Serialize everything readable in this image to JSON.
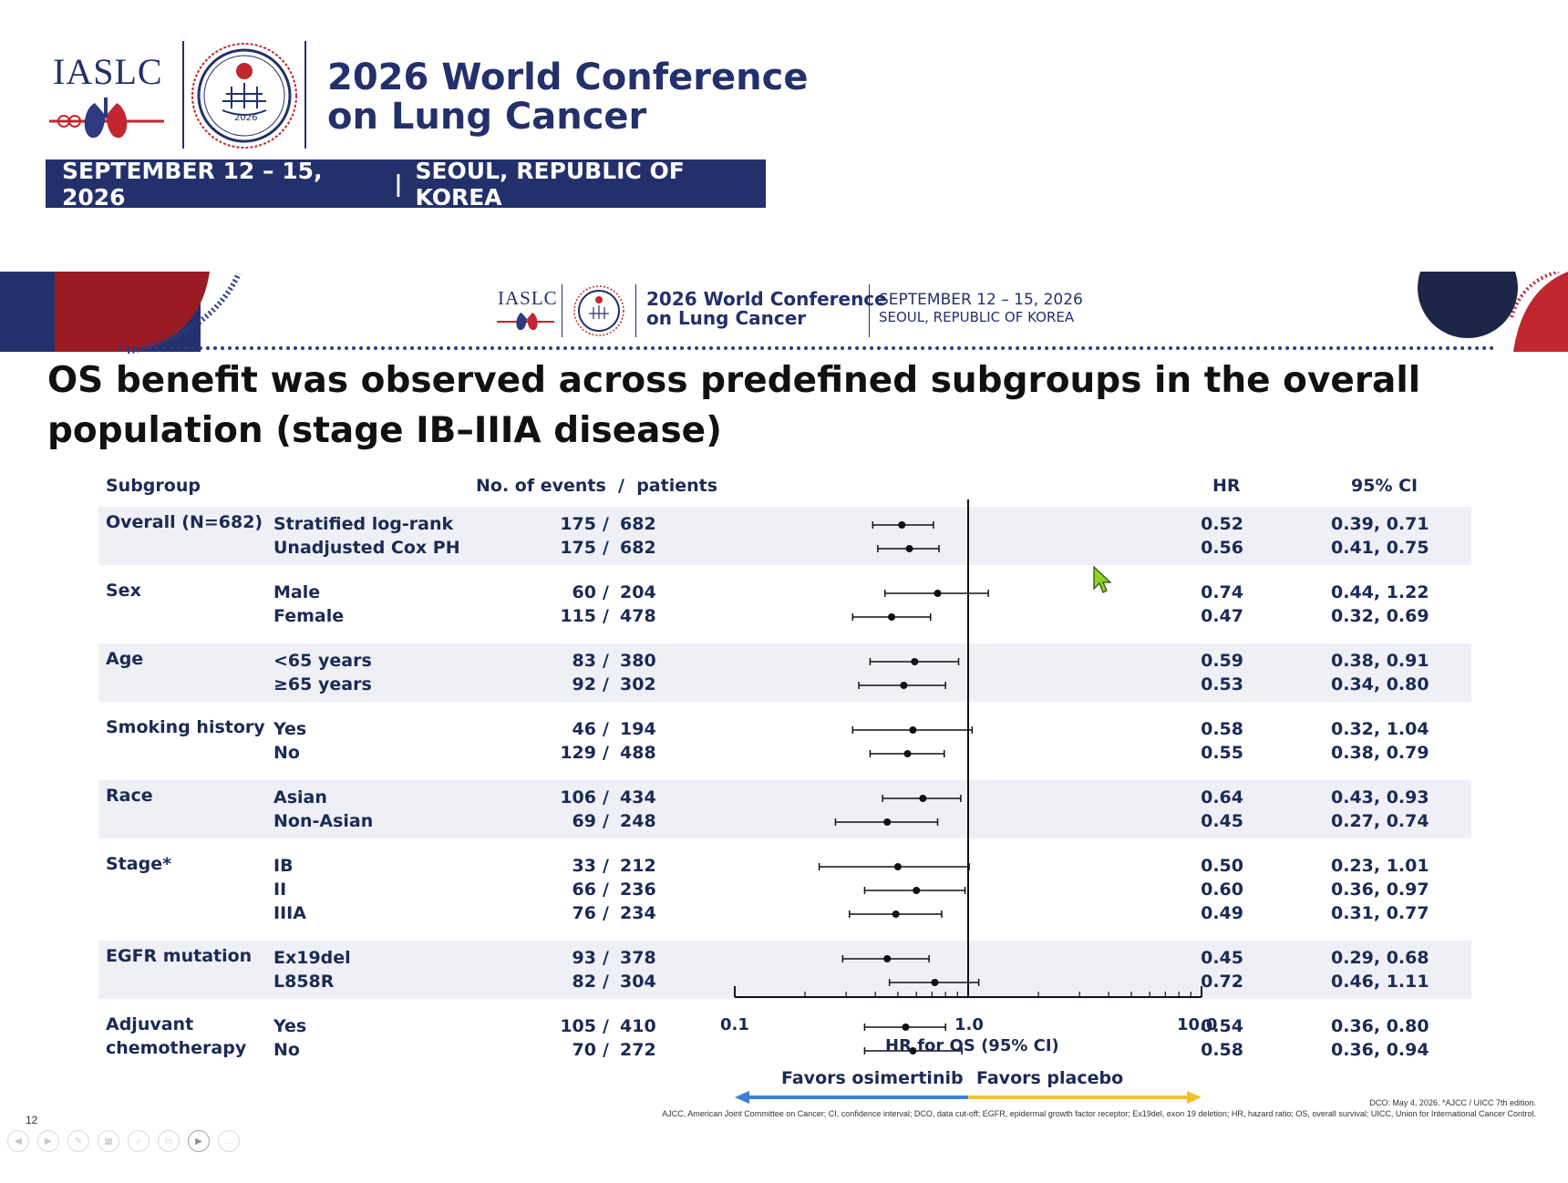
{
  "conference": {
    "org": "IASLC",
    "emblem_year": "2026",
    "title_line1": "2026 World Conference",
    "title_line2": "on Lung Cancer",
    "dates": "SEPTEMBER 12 – 15, 2026",
    "separator": "|",
    "location": "SEOUL, REPUBLIC OF KOREA"
  },
  "slide_header": {
    "org": "IASLC",
    "title_line1": "2026 World Conference",
    "title_line2": "on Lung Cancer",
    "dates": "SEPTEMBER 12 – 15, 2026",
    "location": "SEOUL, REPUBLIC OF KOREA"
  },
  "slide": {
    "title_line1": "OS benefit was observed across predefined subgroups in the overall",
    "title_line2": "population (stage IB–IIIA disease)",
    "page_number": "12"
  },
  "table_headers": {
    "subgroup": "Subgroup",
    "events_patients": "No. of events  /  patients",
    "hr": "HR",
    "ci": "95% CI"
  },
  "chart_data": {
    "type": "forest",
    "x_scale": "log",
    "xlim": [
      0.1,
      10.0
    ],
    "xticks": [
      "0.1",
      "1.0",
      "10.0"
    ],
    "xlabel": "HR for OS (95% CI)",
    "reference_line": 1.0,
    "favors_left": "Favors osimertinib",
    "favors_right": "Favors placebo",
    "colors": {
      "left_arrow": "#3b7fd6",
      "right_arrow": "#f2c12e",
      "marker": "#111111",
      "band": "#eef0f5",
      "text": "#1b2a55"
    },
    "groups": [
      {
        "label": "Overall (N=682)",
        "shaded": true,
        "rows": [
          {
            "name": "Stratified log-rank",
            "events": "175",
            "patients": "682",
            "hr": 0.52,
            "ci_low": 0.39,
            "ci_high": 0.71,
            "hr_text": "0.52",
            "ci_text": "0.39, 0.71"
          },
          {
            "name": "Unadjusted Cox PH",
            "events": "175",
            "patients": "682",
            "hr": 0.56,
            "ci_low": 0.41,
            "ci_high": 0.75,
            "hr_text": "0.56",
            "ci_text": "0.41, 0.75"
          }
        ]
      },
      {
        "label": "Sex",
        "shaded": false,
        "rows": [
          {
            "name": "Male",
            "events": "60",
            "patients": "204",
            "hr": 0.74,
            "ci_low": 0.44,
            "ci_high": 1.22,
            "hr_text": "0.74",
            "ci_text": "0.44, 1.22"
          },
          {
            "name": "Female",
            "events": "115",
            "patients": "478",
            "hr": 0.47,
            "ci_low": 0.32,
            "ci_high": 0.69,
            "hr_text": "0.47",
            "ci_text": "0.32, 0.69"
          }
        ]
      },
      {
        "label": "Age",
        "shaded": true,
        "rows": [
          {
            "name": "<65 years",
            "events": "83",
            "patients": "380",
            "hr": 0.59,
            "ci_low": 0.38,
            "ci_high": 0.91,
            "hr_text": "0.59",
            "ci_text": "0.38, 0.91"
          },
          {
            "name": "≥65 years",
            "events": "92",
            "patients": "302",
            "hr": 0.53,
            "ci_low": 0.34,
            "ci_high": 0.8,
            "hr_text": "0.53",
            "ci_text": "0.34, 0.80"
          }
        ]
      },
      {
        "label": "Smoking history",
        "shaded": false,
        "rows": [
          {
            "name": "Yes",
            "events": "46",
            "patients": "194",
            "hr": 0.58,
            "ci_low": 0.32,
            "ci_high": 1.04,
            "hr_text": "0.58",
            "ci_text": "0.32, 1.04"
          },
          {
            "name": "No",
            "events": "129",
            "patients": "488",
            "hr": 0.55,
            "ci_low": 0.38,
            "ci_high": 0.79,
            "hr_text": "0.55",
            "ci_text": "0.38, 0.79"
          }
        ]
      },
      {
        "label": "Race",
        "shaded": true,
        "rows": [
          {
            "name": "Asian",
            "events": "106",
            "patients": "434",
            "hr": 0.64,
            "ci_low": 0.43,
            "ci_high": 0.93,
            "hr_text": "0.64",
            "ci_text": "0.43, 0.93"
          },
          {
            "name": "Non-Asian",
            "events": "69",
            "patients": "248",
            "hr": 0.45,
            "ci_low": 0.27,
            "ci_high": 0.74,
            "hr_text": "0.45",
            "ci_text": "0.27, 0.74"
          }
        ]
      },
      {
        "label": "Stage*",
        "shaded": false,
        "rows": [
          {
            "name": "IB",
            "events": "33",
            "patients": "212",
            "hr": 0.5,
            "ci_low": 0.23,
            "ci_high": 1.01,
            "hr_text": "0.50",
            "ci_text": "0.23, 1.01"
          },
          {
            "name": "II",
            "events": "66",
            "patients": "236",
            "hr": 0.6,
            "ci_low": 0.36,
            "ci_high": 0.97,
            "hr_text": "0.60",
            "ci_text": "0.36, 0.97"
          },
          {
            "name": "IIIA",
            "events": "76",
            "patients": "234",
            "hr": 0.49,
            "ci_low": 0.31,
            "ci_high": 0.77,
            "hr_text": "0.49",
            "ci_text": "0.31, 0.77"
          }
        ]
      },
      {
        "label": "EGFR mutation",
        "shaded": true,
        "rows": [
          {
            "name": "Ex19del",
            "events": "93",
            "patients": "378",
            "hr": 0.45,
            "ci_low": 0.29,
            "ci_high": 0.68,
            "hr_text": "0.45",
            "ci_text": "0.29, 0.68"
          },
          {
            "name": "L858R",
            "events": "82",
            "patients": "304",
            "hr": 0.72,
            "ci_low": 0.46,
            "ci_high": 1.11,
            "hr_text": "0.72",
            "ci_text": "0.46, 1.11"
          }
        ]
      },
      {
        "label": "Adjuvant\nchemotherapy",
        "shaded": false,
        "rows": [
          {
            "name": "Yes",
            "events": "105",
            "patients": "410",
            "hr": 0.54,
            "ci_low": 0.36,
            "ci_high": 0.8,
            "hr_text": "0.54",
            "ci_text": "0.36, 0.80"
          },
          {
            "name": "No",
            "events": "70",
            "patients": "272",
            "hr": 0.58,
            "ci_low": 0.36,
            "ci_high": 0.94,
            "hr_text": "0.58",
            "ci_text": "0.36, 0.94"
          }
        ]
      }
    ]
  },
  "footnotes": {
    "dco": "DCO: May 4, 2026. *AJCC / UICC 7th edition.",
    "abbrev": "AJCC, American Joint Committee on Cancer; CI, confidence interval; DCO, data cut-off; EGFR, epidermal growth factor receptor; Ex19del, exon 19 deletion; HR, hazard ratio; OS, overall survival; UICC, Union for International Cancer Control."
  }
}
